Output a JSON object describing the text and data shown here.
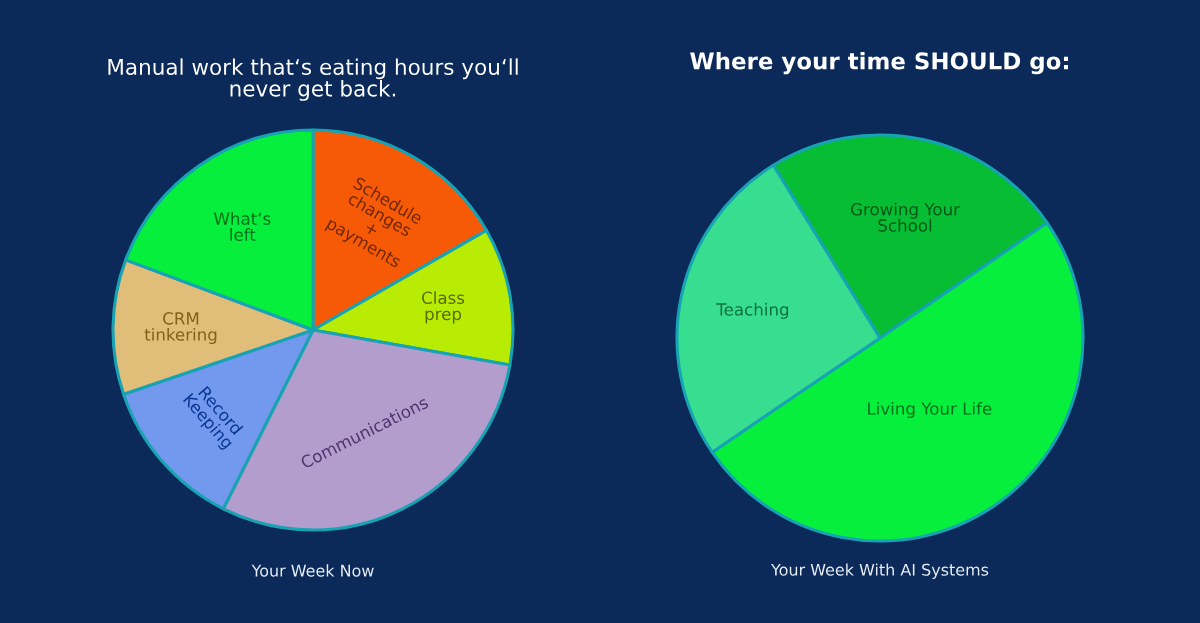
{
  "chart_data": [
    {
      "type": "pie",
      "title": "Manual work that‘s eating hours you‘ll never get back.",
      "categories": [
        "Schedule changes + payments",
        "Class prep",
        "Communications",
        "Record Keeping",
        "CRM tinkering",
        "What‘s left"
      ],
      "values": [
        16.7,
        11.1,
        29.6,
        12.4,
        10.9,
        19.3
      ],
      "colors": [
        "#f75a07",
        "#b8ec04",
        "#b39dcc",
        "#7399ee",
        "#e0be7a",
        "#05ef3c"
      ],
      "annotations": [
        "Your Week Now"
      ]
    },
    {
      "type": "pie",
      "title": "Where your time SHOULD go:",
      "categories": [
        "Growing Your School",
        "Living Your Life",
        "Teaching"
      ],
      "values": [
        24.2,
        50.1,
        25.7
      ],
      "colors": [
        "#06bd33",
        "#05ef3c",
        "#38de8f"
      ],
      "annotations": [
        "Your Week With AI Systems"
      ]
    }
  ]
}
